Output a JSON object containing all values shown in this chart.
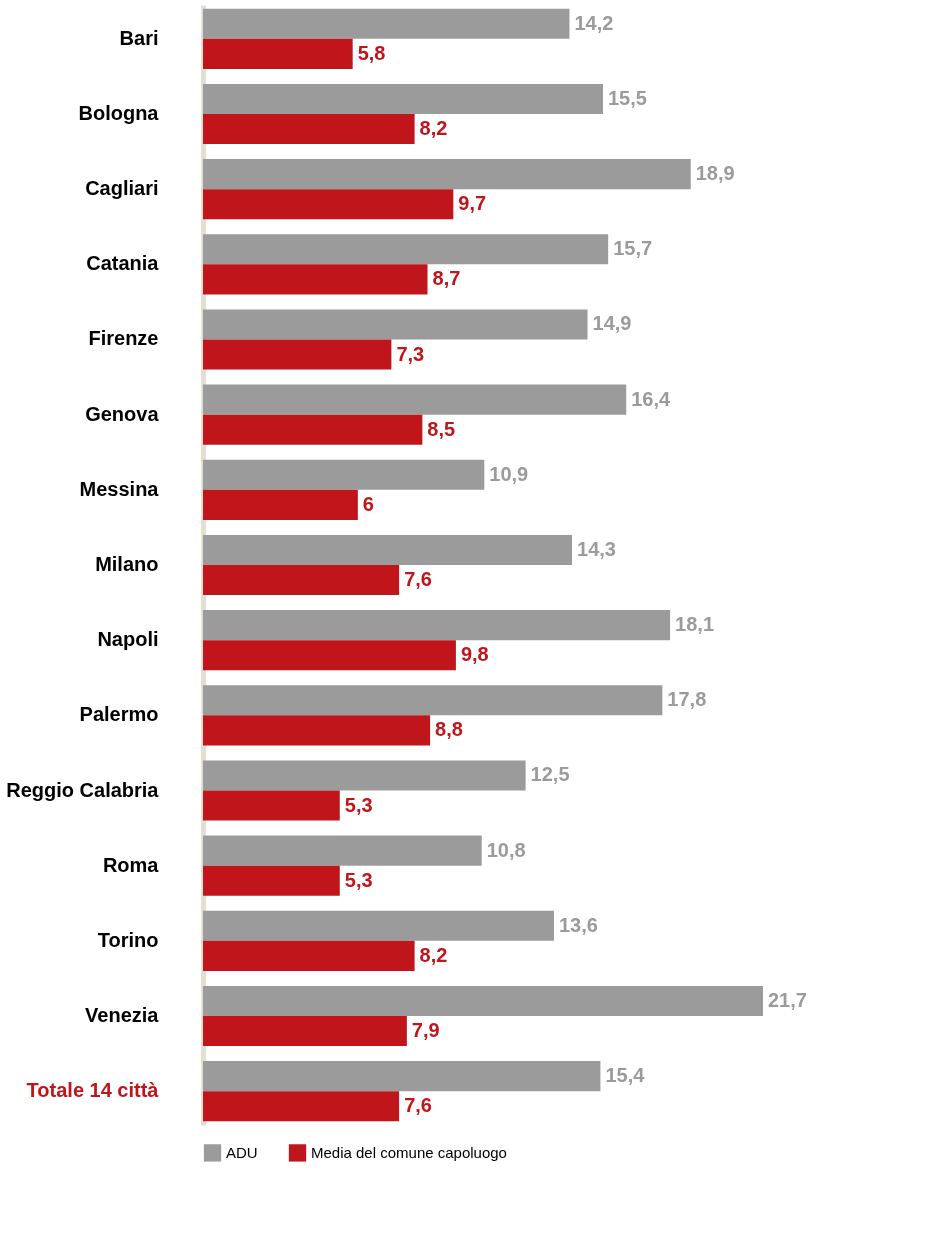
{
  "chart_data": {
    "type": "bar",
    "orientation": "horizontal",
    "legend": "bottom",
    "categories": [
      "Bari",
      "Bologna",
      "Cagliari",
      "Catania",
      "Firenze",
      "Genova",
      "Messina",
      "Milano",
      "Napoli",
      "Palermo",
      "Reggio Calabria",
      "Roma",
      "Torino",
      "Venezia",
      "Totale 14 città"
    ],
    "series": [
      {
        "name": "ADU",
        "color": "#9b9b9b",
        "values": [
          14.2,
          15.5,
          18.9,
          15.7,
          14.9,
          16.4,
          10.9,
          14.3,
          18.1,
          17.8,
          12.5,
          10.8,
          13.6,
          21.7,
          15.4
        ],
        "value_labels": [
          "14,2",
          "15,5",
          "18,9",
          "15,7",
          "14,9",
          "16,4",
          "10,9",
          "14,3",
          "18,1",
          "17,8",
          "12,5",
          "10,8",
          "13,6",
          "21,7",
          "15,4"
        ]
      },
      {
        "name": "Media del comune capoluogo",
        "color": "#c0161b",
        "values": [
          5.8,
          8.2,
          9.7,
          8.7,
          7.3,
          8.5,
          6,
          7.6,
          9.8,
          8.8,
          5.3,
          5.3,
          8.2,
          7.9,
          7.6
        ],
        "value_labels": [
          "5,8",
          "8,2",
          "9,7",
          "8,7",
          "7,3",
          "8,5",
          "6",
          "7,6",
          "9,8",
          "8,8",
          "5,3",
          "5,3",
          "8,2",
          "7,9",
          "7,6"
        ]
      }
    ]
  }
}
